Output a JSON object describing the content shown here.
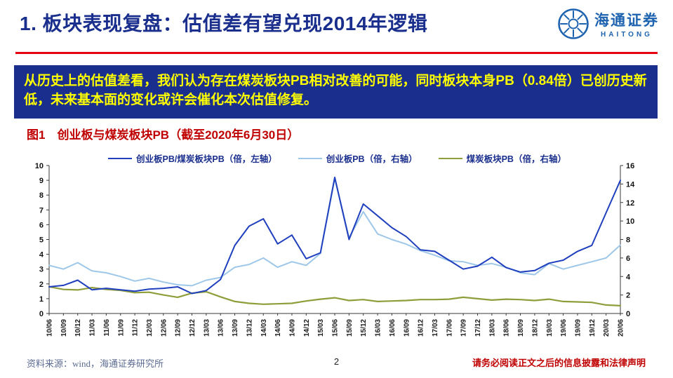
{
  "header": {
    "title": "1. 板块表现复盘：估值差有望兑现2014年逻辑",
    "logo_cn": "海通证券",
    "logo_en": "HAITONG"
  },
  "highlight": {
    "text": "从历史上的估值差看，我们认为存在煤炭板块PB相对改善的可能，同时板块本身PB（0.84倍）已创历史新低，未来基本面的变化或许会催化本次估值修复。"
  },
  "figure": {
    "title": "图1　创业板与煤炭板块PB（截至2020年6月30日）"
  },
  "chart_data": {
    "type": "line",
    "title": "图1　创业板与煤炭板块PB（截至2020年6月30日）",
    "grid": false,
    "legend_position": "top",
    "left_axis": {
      "min": 0,
      "max": 10,
      "step": 1
    },
    "right_axis": {
      "min": 0,
      "max": 16,
      "step": 2
    },
    "x": [
      "10/06",
      "10/09",
      "10/12",
      "11/03",
      "11/06",
      "11/09",
      "11/12",
      "12/03",
      "12/06",
      "12/09",
      "12/12",
      "13/03",
      "13/06",
      "13/09",
      "13/12",
      "14/03",
      "14/06",
      "14/09",
      "14/12",
      "15/03",
      "15/06",
      "15/09",
      "15/12",
      "16/03",
      "16/06",
      "16/09",
      "16/12",
      "17/03",
      "17/06",
      "17/09",
      "17/12",
      "18/03",
      "18/06",
      "18/09",
      "18/12",
      "19/03",
      "19/06",
      "19/09",
      "19/12",
      "20/03",
      "20/06"
    ],
    "series": [
      {
        "name": "创业板PB/煤炭板块PB（倍，左轴）",
        "axis": "left",
        "color": "#1F3FBE",
        "values": [
          1.8,
          1.9,
          2.25,
          1.6,
          1.7,
          1.6,
          1.5,
          1.65,
          1.7,
          1.8,
          1.35,
          1.55,
          2.3,
          4.6,
          5.9,
          6.4,
          4.7,
          5.3,
          3.7,
          4.1,
          9.2,
          5.0,
          7.4,
          6.6,
          5.8,
          5.2,
          4.3,
          4.2,
          3.6,
          3.0,
          3.2,
          3.8,
          3.1,
          2.8,
          2.9,
          3.4,
          3.6,
          4.2,
          4.6,
          6.8,
          9.0
        ]
      },
      {
        "name": "创业板PB（倍，右轴）",
        "axis": "right",
        "color": "#9EC7E8",
        "values": [
          5.2,
          4.8,
          5.5,
          4.6,
          4.4,
          4.0,
          3.5,
          3.8,
          3.4,
          3.1,
          3.0,
          3.6,
          3.9,
          5.0,
          5.3,
          6.0,
          5.0,
          5.6,
          5.2,
          6.5,
          14.6,
          8.2,
          11.0,
          8.6,
          8.0,
          7.5,
          6.8,
          6.3,
          5.7,
          5.6,
          5.2,
          5.4,
          5.0,
          4.4,
          4.2,
          5.4,
          4.8,
          5.2,
          5.6,
          6.0,
          7.4
        ]
      },
      {
        "name": "煤炭板块PB（倍，右轴）",
        "axis": "right",
        "color": "#8F9D3A",
        "values": [
          2.9,
          2.6,
          2.55,
          2.8,
          2.6,
          2.5,
          2.25,
          2.3,
          2.0,
          1.75,
          2.2,
          2.35,
          1.8,
          1.3,
          1.1,
          1.0,
          1.05,
          1.1,
          1.35,
          1.55,
          1.7,
          1.4,
          1.5,
          1.3,
          1.35,
          1.4,
          1.5,
          1.5,
          1.55,
          1.75,
          1.6,
          1.45,
          1.55,
          1.5,
          1.4,
          1.55,
          1.3,
          1.25,
          1.2,
          0.92,
          0.84
        ]
      }
    ]
  },
  "footer": {
    "source": "资料来源：wind，海通证券研究所",
    "page": "2",
    "disclaimer": "请务必阅读正文之后的信息披露和法律声明"
  },
  "colors": {
    "title_navy": "#1A2F8D",
    "accent_red": "#E60012",
    "figure_red": "#C00000",
    "banner_bg": "#1A2F8D",
    "banner_text": "#FFFF00",
    "logo_blue": "#1E63B0"
  }
}
